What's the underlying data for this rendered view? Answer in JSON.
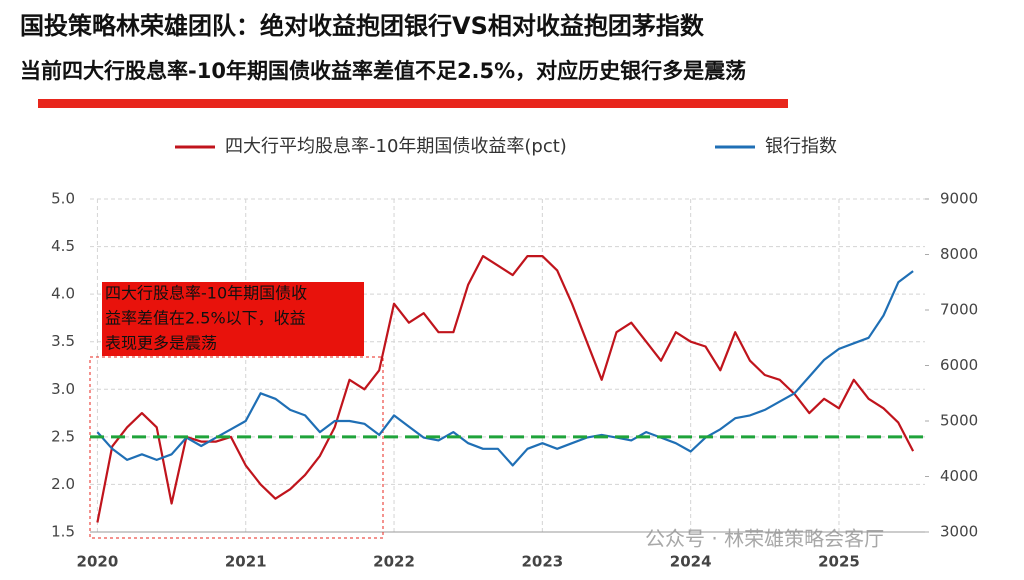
{
  "chart_data": {
    "type": "line",
    "title": "国投策略林荣雄团队：绝对收益抱团银行VS相对收益抱团茅指数",
    "subtitle": "当前四大行股息率-10年期国债收益率差值不足2.5%，对应历史银行多是震荡",
    "annotation": [
      "四大行股息率-10年期国债收",
      "益率差值在2.5%以下，收益",
      "表现更多是震荡"
    ],
    "watermark": "公众号 · 林荣雄策略会客厅",
    "x": [
      2020.0,
      2020.1,
      2020.2,
      2020.3,
      2020.4,
      2020.5,
      2020.6,
      2020.7,
      2020.8,
      2020.9,
      2021.0,
      2021.1,
      2021.2,
      2021.3,
      2021.4,
      2021.5,
      2021.6,
      2021.7,
      2021.8,
      2021.9,
      2022.0,
      2022.1,
      2022.2,
      2022.3,
      2022.4,
      2022.5,
      2022.6,
      2022.7,
      2022.8,
      2022.9,
      2023.0,
      2023.1,
      2023.2,
      2023.3,
      2023.4,
      2023.5,
      2023.6,
      2023.7,
      2023.8,
      2023.9,
      2024.0,
      2024.1,
      2024.2,
      2024.3,
      2024.4,
      2024.5,
      2024.6,
      2024.7,
      2024.8,
      2024.9,
      2025.0,
      2025.1,
      2025.2,
      2025.3,
      2025.4,
      2025.5
    ],
    "series": [
      {
        "name": "四大行平均股息率-10年期国债收益率(pct)",
        "color": "#c0141c",
        "axis": "y",
        "values": [
          1.6,
          2.4,
          2.6,
          2.75,
          2.6,
          1.8,
          2.5,
          2.45,
          2.45,
          2.5,
          2.2,
          2.0,
          1.85,
          1.95,
          2.1,
          2.3,
          2.6,
          3.1,
          3.0,
          3.2,
          3.9,
          3.7,
          3.8,
          3.6,
          3.6,
          4.1,
          4.4,
          4.3,
          4.2,
          4.4,
          4.4,
          4.25,
          3.9,
          3.5,
          3.1,
          3.6,
          3.7,
          3.5,
          3.3,
          3.6,
          3.5,
          3.45,
          3.2,
          3.6,
          3.3,
          3.15,
          3.1,
          2.95,
          2.75,
          2.9,
          2.8,
          3.1,
          2.9,
          2.8,
          2.65,
          2.35
        ]
      },
      {
        "name": "银行指数",
        "color": "#1f6fb5",
        "axis": "y2",
        "values": [
          4800,
          4500,
          4300,
          4400,
          4300,
          4400,
          4700,
          4550,
          4700,
          4850,
          5000,
          5500,
          5400,
          5200,
          5100,
          4800,
          5000,
          5000,
          4950,
          4750,
          5100,
          4900,
          4700,
          4650,
          4800,
          4600,
          4500,
          4500,
          4200,
          4500,
          4600,
          4500,
          4600,
          4700,
          4750,
          4700,
          4650,
          4800,
          4700,
          4600,
          4450,
          4700,
          4850,
          5050,
          5100,
          5200,
          5350,
          5500,
          5800,
          6100,
          6300,
          6400,
          6500,
          6900,
          7500,
          7700
        ]
      }
    ],
    "reference_line": {
      "value": 2.5,
      "color": "#1fa33a"
    },
    "xlim": [
      2019.95,
      2025.58
    ],
    "xticks": [
      2020,
      2021,
      2022,
      2023,
      2024,
      2025
    ],
    "ylim": [
      1.5,
      5.0
    ],
    "yticks": [
      1.5,
      {
        "value": 2,
        "label": "2.0"
      },
      2.5,
      {
        "value": 3,
        "label": "3.0"
      },
      3.5,
      {
        "value": 4,
        "label": "4.0"
      },
      4.5,
      {
        "value": 5,
        "label": "5.0"
      }
    ],
    "y2lim": [
      3000,
      9000
    ],
    "y2ticks": [
      3000,
      4000,
      5000,
      6000,
      7000,
      8000,
      9000
    ],
    "grid": true
  }
}
